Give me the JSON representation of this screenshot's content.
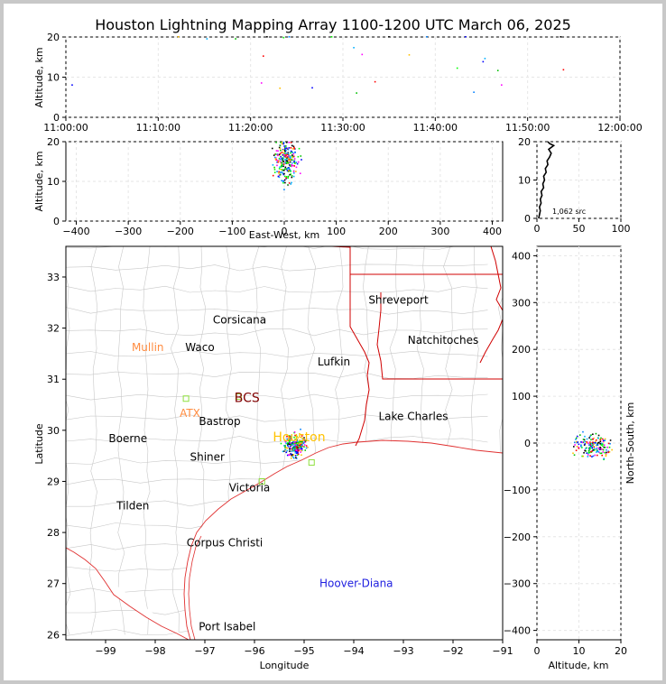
{
  "title": "Houston Lightning Mapping Array 1100-1200 UTC March 06, 2025",
  "chart_data": [
    {
      "id": "time_height",
      "type": "scatter",
      "ylabel": "Altitude, km",
      "x_ticks": [
        "11:00:00",
        "11:10:00",
        "11:20:00",
        "11:30:00",
        "11:40:00",
        "11:50:00",
        "12:00:00"
      ],
      "xlim_minutes": [
        0,
        60
      ],
      "ylim": [
        0,
        20
      ],
      "y_ticks": [
        0,
        10,
        20
      ],
      "grid": true,
      "points": [
        {
          "t": 0.7,
          "z": 8
        },
        {
          "t": 15.3,
          "z": 19.5
        },
        {
          "t": 18.4,
          "z": 19.5
        },
        {
          "t": 21.2,
          "z": 8.5
        },
        {
          "t": 21.4,
          "z": 15.2
        },
        {
          "t": 21.8,
          "z": 20
        },
        {
          "t": 23.2,
          "z": 7.2
        },
        {
          "t": 23.6,
          "z": 19.8
        },
        {
          "t": 24.2,
          "z": 20
        },
        {
          "t": 26.7,
          "z": 7.3
        },
        {
          "t": 31.2,
          "z": 17.3
        },
        {
          "t": 31.5,
          "z": 6
        },
        {
          "t": 32.1,
          "z": 15.6
        },
        {
          "t": 33.5,
          "z": 8.8
        },
        {
          "t": 35,
          "z": 20
        },
        {
          "t": 37.2,
          "z": 15.5
        },
        {
          "t": 42.4,
          "z": 12.2
        },
        {
          "t": 44.2,
          "z": 6.2
        },
        {
          "t": 45.2,
          "z": 13.8
        },
        {
          "t": 45.4,
          "z": 14.6
        },
        {
          "t": 46.8,
          "z": 11.6
        },
        {
          "t": 47.2,
          "z": 8
        },
        {
          "t": 53.9,
          "z": 11.8
        },
        {
          "t": 53.6,
          "z": 20
        },
        {
          "t": 12.2,
          "z": 20
        },
        {
          "t": 28.8,
          "z": 20
        },
        {
          "t": 39.1,
          "z": 20
        },
        {
          "t": 43.3,
          "z": 20
        }
      ]
    },
    {
      "id": "ew_height",
      "type": "scatter",
      "xlabel": "East-West, km",
      "ylabel": "Altitude, km",
      "xlim": [
        -420,
        420
      ],
      "x_ticks": [
        -400,
        -300,
        -200,
        -100,
        0,
        100,
        200,
        300,
        400
      ],
      "ylim": [
        0,
        20
      ],
      "y_ticks": [
        0,
        10,
        20
      ],
      "grid": true
    },
    {
      "id": "altitude_histogram",
      "type": "line",
      "xlim": [
        0,
        100
      ],
      "x_ticks": [
        0,
        50,
        100
      ],
      "ylim": [
        0,
        20
      ],
      "y_ticks": [
        0,
        10,
        20
      ],
      "annotation": "1,062 src",
      "profile": [
        {
          "z": 0,
          "n": 2
        },
        {
          "z": 1,
          "n": 3
        },
        {
          "z": 2,
          "n": 4
        },
        {
          "z": 3,
          "n": 3
        },
        {
          "z": 4,
          "n": 5
        },
        {
          "z": 5,
          "n": 4
        },
        {
          "z": 6,
          "n": 6
        },
        {
          "z": 7,
          "n": 5
        },
        {
          "z": 8,
          "n": 8
        },
        {
          "z": 9,
          "n": 7
        },
        {
          "z": 10,
          "n": 9
        },
        {
          "z": 11,
          "n": 8
        },
        {
          "z": 12,
          "n": 11
        },
        {
          "z": 13,
          "n": 10
        },
        {
          "z": 14,
          "n": 13
        },
        {
          "z": 15,
          "n": 12
        },
        {
          "z": 16,
          "n": 15
        },
        {
          "z": 17,
          "n": 17
        },
        {
          "z": 18,
          "n": 14
        },
        {
          "z": 19,
          "n": 20
        },
        {
          "z": 19.5,
          "n": 15
        },
        {
          "z": 20,
          "n": 13
        }
      ]
    },
    {
      "id": "plan_view",
      "type": "scatter",
      "xlabel": "Longitude",
      "ylabel": "Latitude",
      "xlim": [
        -99.8,
        -91
      ],
      "ylim": [
        25.9,
        33.6
      ],
      "x_ticks": [
        -99,
        -98,
        -97,
        -96,
        -95,
        -94,
        -93,
        -92,
        -91
      ],
      "y_ticks": [
        26,
        27,
        28,
        29,
        30,
        31,
        32,
        33
      ],
      "cities": [
        {
          "name": "Shreveport",
          "lon": -93.1,
          "lat": 32.55,
          "color": "#000000"
        },
        {
          "name": "Corsicana",
          "lon": -96.3,
          "lat": 32.16,
          "color": "#000000"
        },
        {
          "name": "Natchitoches",
          "lon": -92.2,
          "lat": 31.76,
          "color": "#000000"
        },
        {
          "name": "Mullin",
          "lon": -98.15,
          "lat": 31.62,
          "color": "#ff8c40"
        },
        {
          "name": "Waco",
          "lon": -97.1,
          "lat": 31.62,
          "color": "#000000"
        },
        {
          "name": "Lufkin",
          "lon": -94.4,
          "lat": 31.34,
          "color": "#000000"
        },
        {
          "name": "BCS",
          "lon": -96.15,
          "lat": 30.62,
          "color": "#800000"
        },
        {
          "name": "ATX",
          "lon": -97.3,
          "lat": 30.33,
          "color": "#ff8c40"
        },
        {
          "name": "Lake Charles",
          "lon": -92.8,
          "lat": 30.27,
          "color": "#000000"
        },
        {
          "name": "Bastrop",
          "lon": -96.7,
          "lat": 30.17,
          "color": "#000000"
        },
        {
          "name": "Houston",
          "lon": -95.1,
          "lat": 29.86,
          "color": "#ffc200"
        },
        {
          "name": "Boerne",
          "lon": -98.55,
          "lat": 29.84,
          "color": "#000000"
        },
        {
          "name": "Shiner",
          "lon": -96.95,
          "lat": 29.48,
          "color": "#000000"
        },
        {
          "name": "Victoria",
          "lon": -96.1,
          "lat": 28.88,
          "color": "#000000"
        },
        {
          "name": "Tilden",
          "lon": -98.45,
          "lat": 28.52,
          "color": "#000000"
        },
        {
          "name": "Corpus Christi",
          "lon": -96.6,
          "lat": 27.8,
          "color": "#000000"
        },
        {
          "name": "Hoover-Diana",
          "lon": -93.95,
          "lat": 27.0,
          "color": "#1e1ee0"
        },
        {
          "name": "Port Isabel",
          "lon": -96.55,
          "lat": 26.16,
          "color": "#000000"
        }
      ],
      "station_markers": [
        {
          "lon": -97.38,
          "lat": 30.62
        },
        {
          "lon": -96.32,
          "lat": 30.66
        },
        {
          "lon": -95.85,
          "lat": 29.0
        },
        {
          "lon": -94.85,
          "lat": 29.37
        }
      ]
    },
    {
      "id": "ns_height",
      "type": "scatter",
      "xlabel": "Altitude, km",
      "ylabel": "North-South, km",
      "xlim": [
        0,
        20
      ],
      "x_ticks": [
        0,
        10,
        20
      ],
      "ylim": [
        -420,
        420
      ],
      "y_ticks": [
        -400,
        -300,
        -200,
        -100,
        0,
        100,
        200,
        300,
        400
      ],
      "grid": true
    }
  ]
}
